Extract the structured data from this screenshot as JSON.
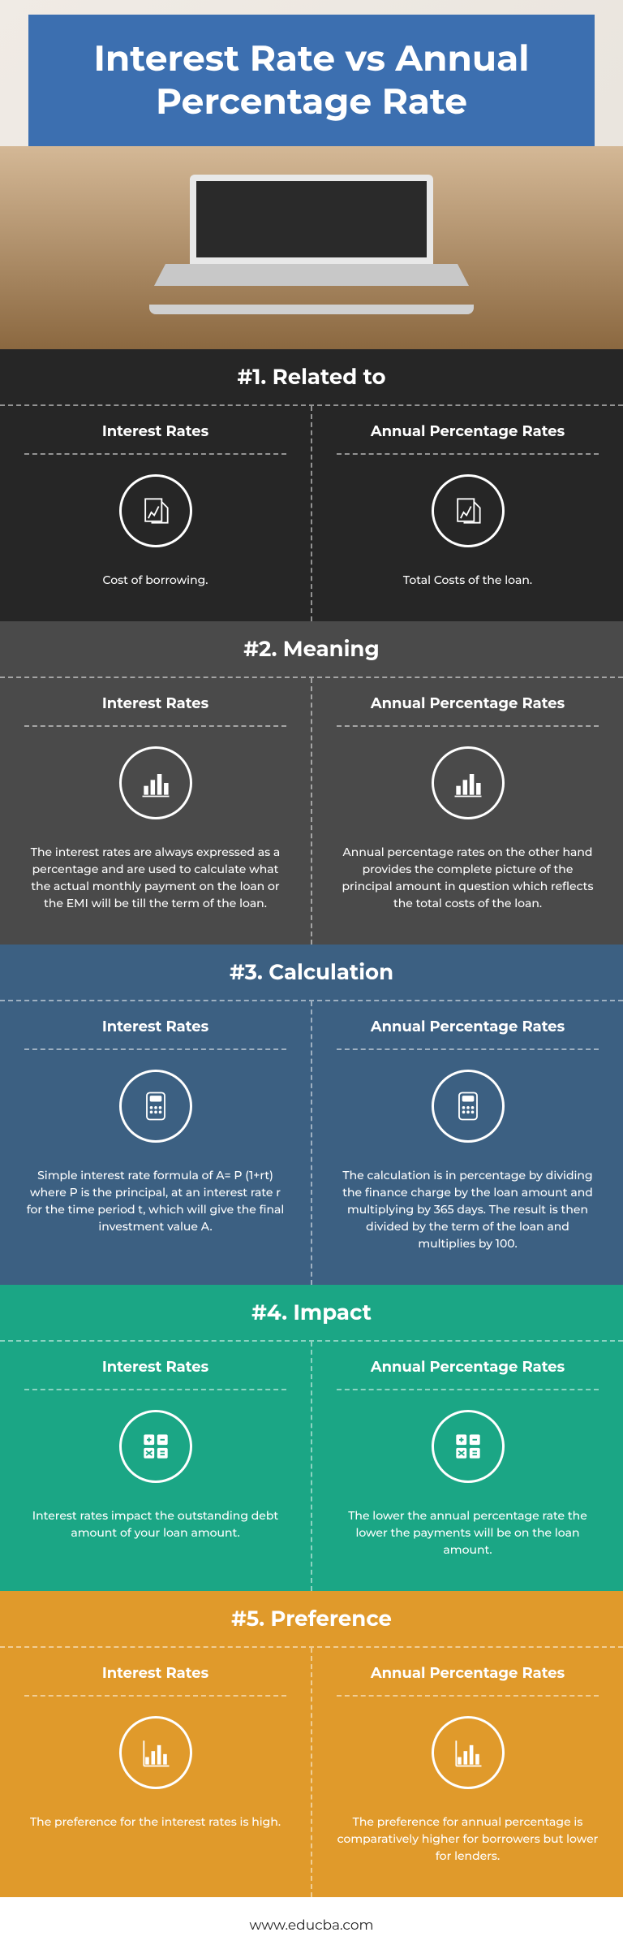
{
  "title": "Interest Rate vs Annual Percentage Rate",
  "footer": "www.educba.com",
  "columns": {
    "left_label": "Interest Rates",
    "right_label": "Annual Percentage Rates"
  },
  "sections": [
    {
      "header": "#1. Related to",
      "bg": "#262626",
      "icon": "document",
      "left": "Cost of borrowing.",
      "right": "Total Costs of the loan."
    },
    {
      "header": "#2. Meaning",
      "bg": "#4a4a4a",
      "icon": "barchart",
      "left": "The interest rates are always expressed as a percentage and are used to calculate what the actual monthly payment on the loan or the EMI will be till the term of the loan.",
      "right": "Annual percentage rates on the other hand provides the complete picture of the principal amount in question which reflects the total costs of the loan."
    },
    {
      "header": "#3. Calculation",
      "bg": "#3c6082",
      "icon": "calculator",
      "left": "Simple interest rate formula of A= P (1+rt) where P is the principal, at an interest rate r for the time period t, which will give the final investment value A.",
      "right": "The calculation is in percentage by dividing the finance charge by the loan amount and multiplying by 365 days. The result is then divided by the term of the loan and multiplies by 100."
    },
    {
      "header": "#4. Impact",
      "bg": "#1ba685",
      "icon": "mathgrid",
      "left": "Interest rates impact the outstanding debt amount of your loan amount.",
      "right": "The lower the annual percentage rate the lower the payments will be on the loan amount."
    },
    {
      "header": "#5. Preference",
      "bg": "#e09a2b",
      "icon": "barchart2",
      "left": "The preference for the interest rates is high.",
      "right": "The preference for annual percentage is comparatively higher for borrowers but lower for lenders."
    }
  ],
  "colors": {
    "title_banner": "#3c6fb0",
    "text": "#ffffff"
  }
}
